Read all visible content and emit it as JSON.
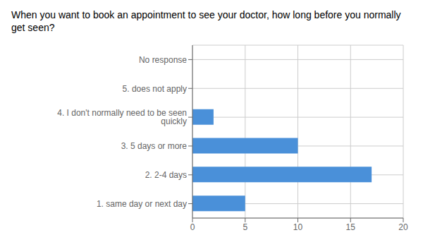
{
  "chart_data": {
    "type": "bar",
    "orientation": "horizontal",
    "title": "When you want to book an appointment to see your doctor, how long before you normally get seen?",
    "categories": [
      "No response",
      "5. does not apply",
      "4. I don't normally need to be seen quickly",
      "3. 5 days or more",
      "2. 2-4 days",
      "1. same day or next day"
    ],
    "values": [
      0,
      0,
      2,
      10,
      17,
      5
    ],
    "color": "#4a90d9",
    "xlim": [
      0,
      20
    ],
    "xticks": [
      0,
      5,
      10,
      15,
      20
    ],
    "grid": true
  }
}
